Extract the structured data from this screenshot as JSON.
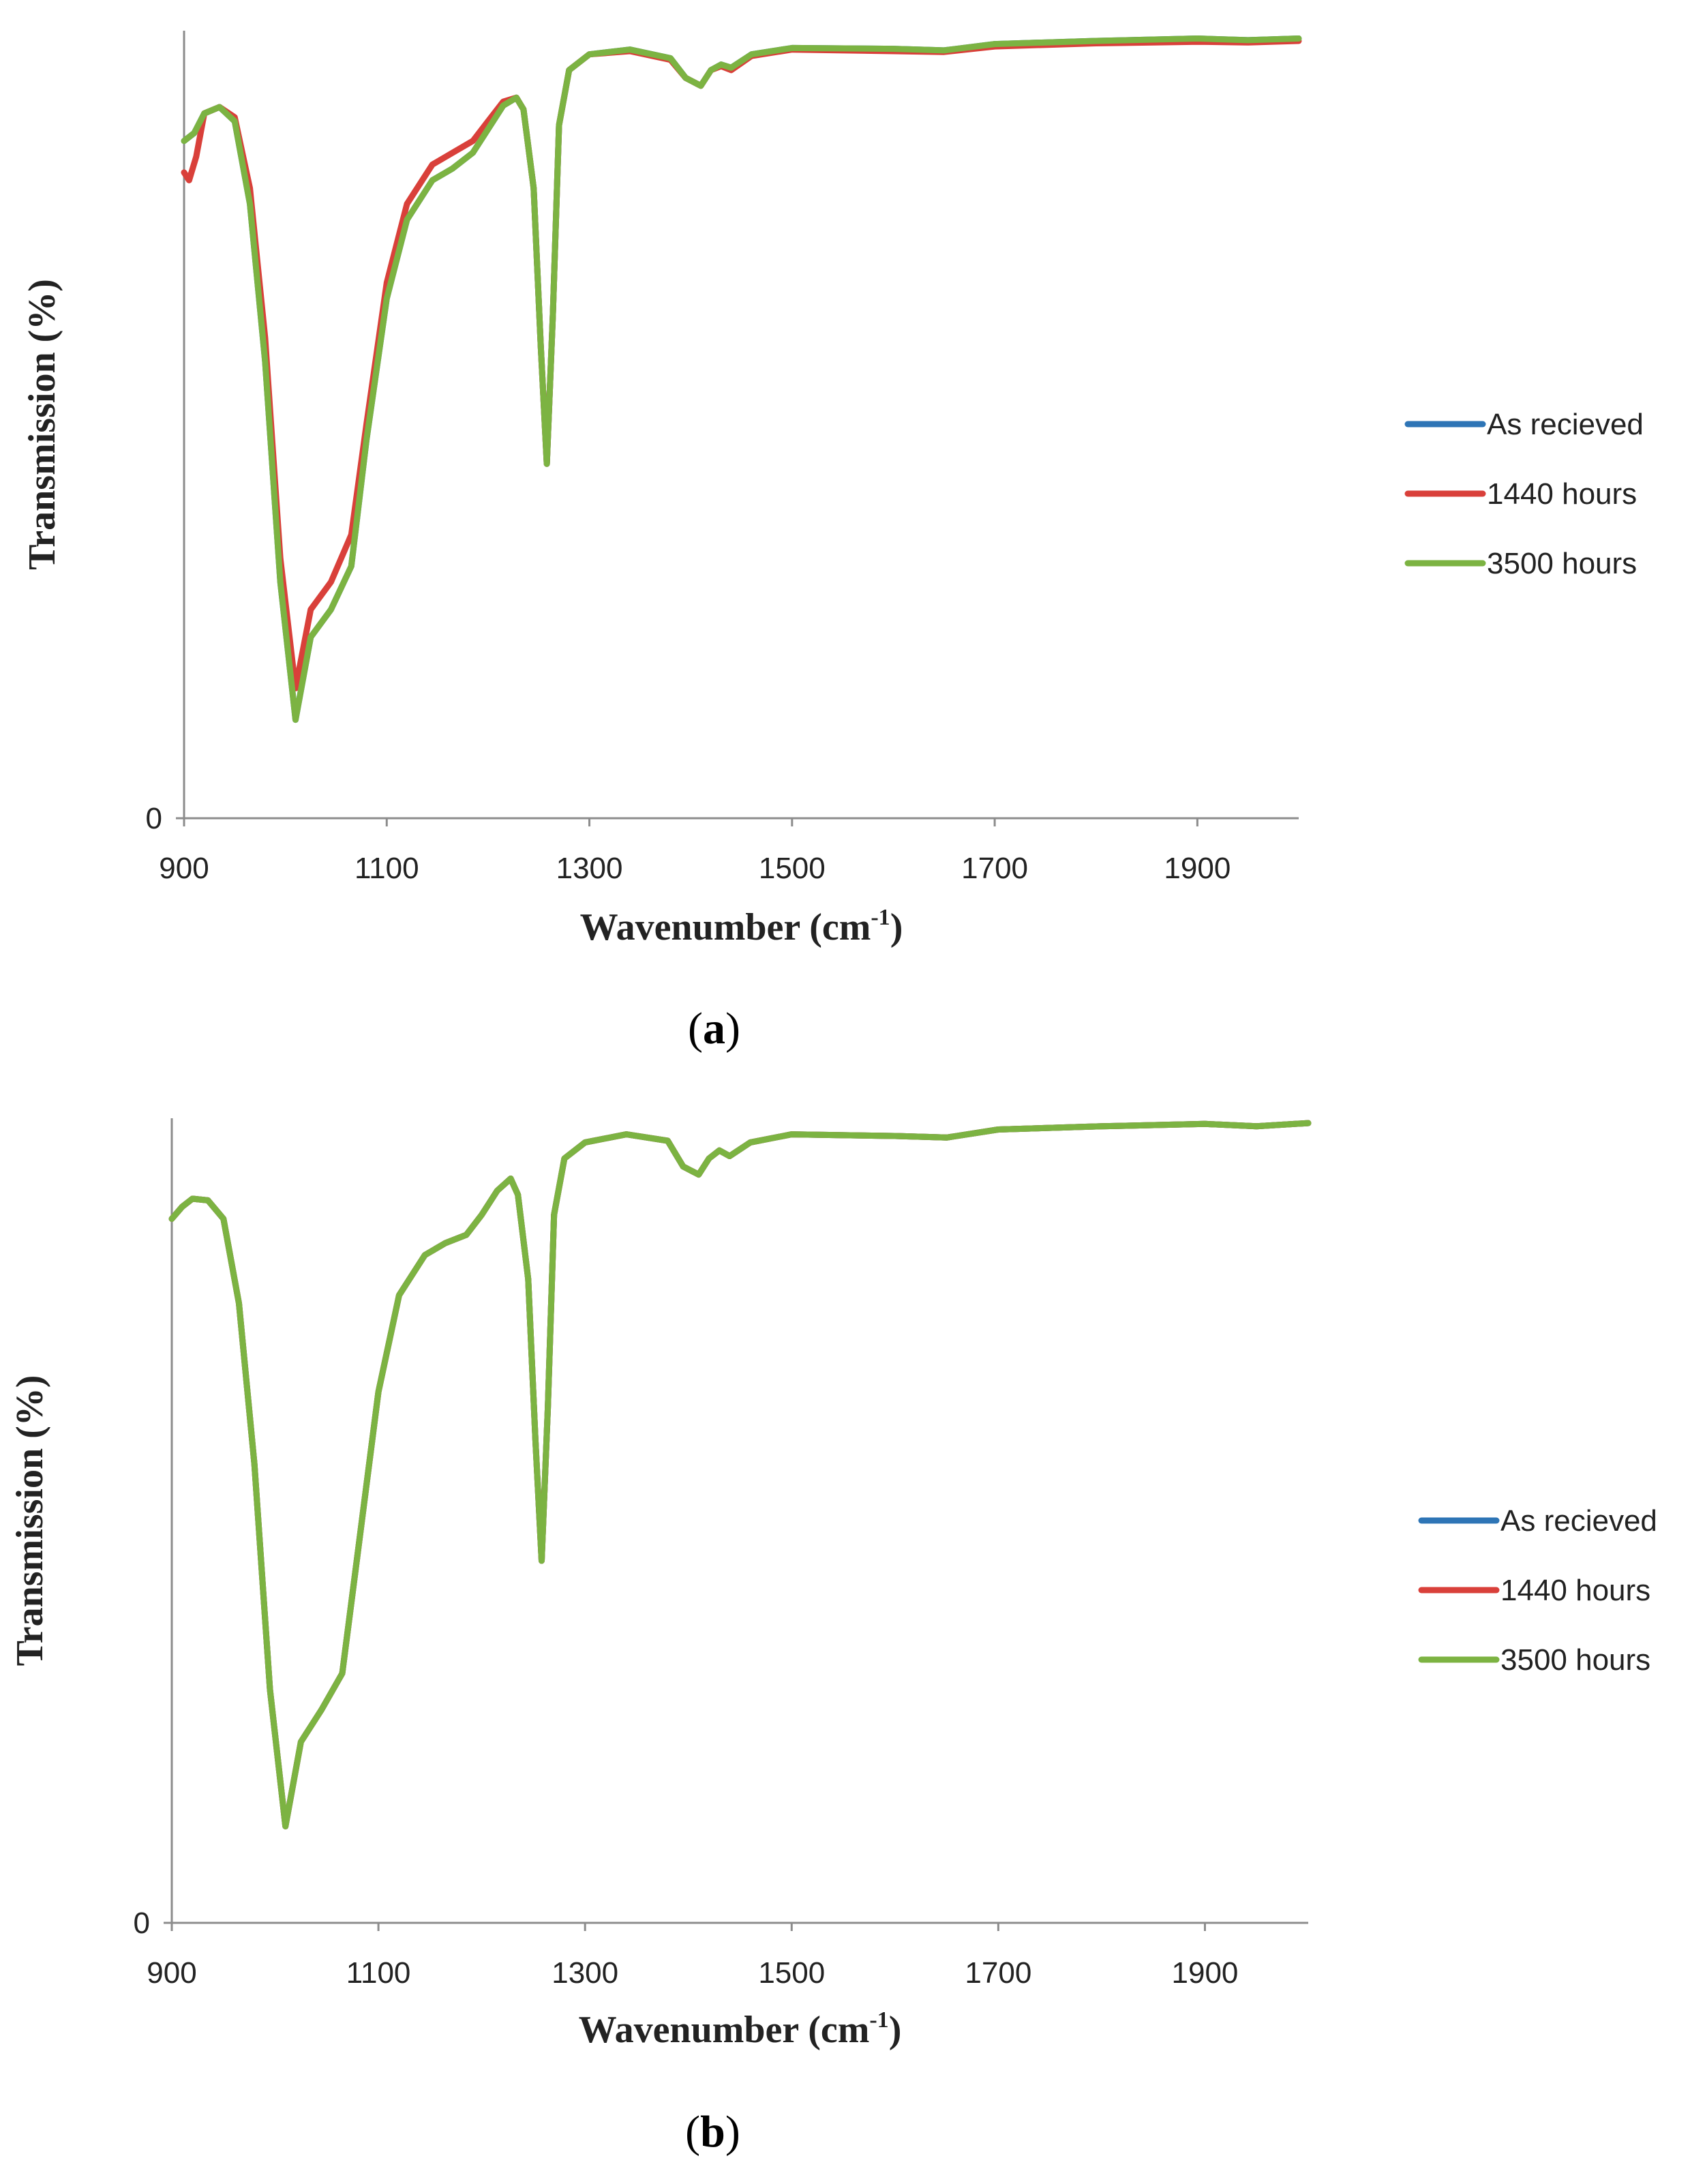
{
  "chart_data": [
    {
      "type": "line",
      "panel_label": "a",
      "title": "",
      "xlabel": "Wavenumber (cm",
      "xlabel_sup": "-1",
      "xlabel_suffix": ")",
      "ylabel": "Transmission (%)",
      "xlim": [
        900,
        2000
      ],
      "ylim": [
        0,
        100
      ],
      "x_ticks": [
        900,
        1100,
        1300,
        1500,
        1700,
        1900
      ],
      "y_ticks": [
        0
      ],
      "legend_position": "right",
      "series": [
        {
          "name": "As recieved",
          "color": "#2e75b6",
          "x": [
            900,
            910,
            920,
            935,
            950,
            965,
            980,
            995,
            1010,
            1025,
            1045,
            1065,
            1080,
            1100,
            1120,
            1145,
            1165,
            1185,
            1200,
            1215,
            1228,
            1235,
            1245,
            1252,
            1258,
            1264,
            1270,
            1280,
            1300,
            1340,
            1380,
            1395,
            1410,
            1420,
            1430,
            1440,
            1460,
            1500,
            1600,
            1650,
            1700,
            1800,
            1900,
            1950,
            2000
          ],
          "y": [
            86.0,
            87.0,
            89.5,
            90.3,
            88.5,
            78.0,
            58.0,
            30.0,
            12.5,
            23.0,
            26.5,
            32.0,
            48.0,
            66.0,
            76.0,
            81.0,
            82.5,
            84.5,
            87.5,
            90.5,
            91.5,
            90.0,
            80.0,
            60.0,
            45.0,
            64.0,
            88.0,
            95.0,
            97.0,
            97.6,
            96.5,
            94.0,
            93.0,
            95.0,
            95.7,
            95.3,
            97.0,
            97.8,
            97.7,
            97.5,
            98.3,
            98.7,
            99.0,
            98.8,
            99.0
          ]
        },
        {
          "name": "1440 hours",
          "color": "#d9403a",
          "x": [
            900,
            905,
            912,
            920,
            935,
            950,
            965,
            980,
            995,
            1010,
            1025,
            1045,
            1065,
            1080,
            1100,
            1120,
            1145,
            1165,
            1185,
            1200,
            1215,
            1228,
            1235,
            1245,
            1252,
            1258,
            1264,
            1270,
            1280,
            1300,
            1340,
            1380,
            1395,
            1410,
            1420,
            1430,
            1440,
            1460,
            1500,
            1600,
            1650,
            1700,
            1800,
            1900,
            1950,
            2000
          ],
          "y": [
            82.0,
            81.0,
            84.0,
            89.5,
            90.3,
            89.0,
            80.0,
            61.0,
            33.0,
            16.5,
            26.5,
            30.0,
            36.0,
            50.0,
            68.0,
            78.0,
            83.0,
            84.5,
            86.0,
            88.5,
            91.0,
            91.5,
            90.0,
            80.0,
            60.0,
            45.0,
            64.0,
            88.0,
            95.0,
            97.0,
            97.4,
            96.3,
            94.0,
            93.0,
            95.0,
            95.5,
            95.0,
            96.8,
            97.6,
            97.4,
            97.3,
            98.0,
            98.4,
            98.6,
            98.5,
            98.7
          ]
        },
        {
          "name": "3500 hours",
          "color": "#7cb342",
          "x": [
            900,
            910,
            920,
            935,
            950,
            965,
            980,
            995,
            1010,
            1025,
            1045,
            1065,
            1080,
            1100,
            1120,
            1145,
            1165,
            1185,
            1200,
            1215,
            1228,
            1235,
            1245,
            1252,
            1258,
            1264,
            1270,
            1280,
            1300,
            1340,
            1380,
            1395,
            1410,
            1420,
            1430,
            1440,
            1460,
            1500,
            1600,
            1650,
            1700,
            1800,
            1900,
            1950,
            2000
          ],
          "y": [
            86.0,
            87.0,
            89.5,
            90.3,
            88.5,
            78.0,
            58.0,
            30.0,
            12.5,
            23.0,
            26.5,
            32.0,
            48.0,
            66.0,
            76.0,
            81.0,
            82.5,
            84.5,
            87.5,
            90.5,
            91.5,
            90.0,
            80.0,
            60.0,
            45.0,
            64.0,
            88.0,
            95.0,
            97.0,
            97.6,
            96.5,
            94.0,
            93.0,
            95.0,
            95.7,
            95.3,
            97.0,
            97.8,
            97.7,
            97.5,
            98.3,
            98.7,
            99.0,
            98.8,
            99.0
          ]
        }
      ]
    },
    {
      "type": "line",
      "panel_label": "b",
      "title": "",
      "xlabel": "Wavenumber (cm",
      "xlabel_sup": "-1",
      "xlabel_suffix": ")",
      "ylabel": "Transmission (%)",
      "xlim": [
        900,
        2000
      ],
      "ylim": [
        0,
        100
      ],
      "x_ticks": [
        900,
        1100,
        1300,
        1500,
        1700,
        1900
      ],
      "y_ticks": [
        0
      ],
      "legend_position": "right",
      "series": [
        {
          "name": "As recieved",
          "color": "#2e75b6",
          "x": [
            900,
            910,
            920,
            935,
            950,
            965,
            980,
            995,
            1010,
            1025,
            1045,
            1065,
            1080,
            1100,
            1120,
            1145,
            1165,
            1185,
            1200,
            1215,
            1228,
            1235,
            1245,
            1252,
            1258,
            1264,
            1270,
            1280,
            1300,
            1340,
            1380,
            1395,
            1410,
            1420,
            1430,
            1440,
            1460,
            1500,
            1600,
            1650,
            1700,
            1800,
            1900,
            1950,
            2000
          ],
          "y": [
            87.5,
            89.0,
            90.0,
            89.8,
            87.5,
            77.0,
            57.0,
            29.0,
            12.0,
            22.5,
            26.5,
            31.0,
            46.0,
            66.0,
            78.0,
            83.0,
            84.5,
            85.5,
            88.0,
            91.0,
            92.5,
            90.5,
            80.0,
            60.0,
            45.0,
            64.0,
            88.0,
            95.0,
            97.0,
            98.0,
            97.2,
            94.0,
            93.0,
            95.0,
            96.0,
            95.3,
            97.0,
            98.0,
            97.8,
            97.6,
            98.6,
            99.0,
            99.3,
            99.0,
            99.4
          ]
        },
        {
          "name": "1440 hours",
          "color": "#d9403a",
          "x": [
            900,
            910,
            920,
            935,
            950,
            965,
            980,
            995,
            1010,
            1025,
            1045,
            1065,
            1080,
            1100,
            1120,
            1145,
            1165,
            1185,
            1200,
            1215,
            1228,
            1235,
            1245,
            1252,
            1258,
            1264,
            1270,
            1280,
            1300,
            1340,
            1380,
            1395,
            1410,
            1420,
            1430,
            1440,
            1460,
            1500,
            1600,
            1650,
            1700,
            1800,
            1900,
            1950,
            2000
          ],
          "y": [
            87.5,
            89.0,
            90.0,
            89.8,
            87.5,
            77.0,
            57.0,
            29.0,
            12.0,
            22.5,
            26.5,
            31.0,
            46.0,
            66.0,
            78.0,
            83.0,
            84.5,
            85.5,
            88.0,
            91.0,
            92.5,
            90.5,
            80.0,
            60.0,
            45.0,
            64.0,
            88.0,
            95.0,
            97.0,
            98.0,
            97.2,
            94.0,
            93.0,
            95.0,
            96.0,
            95.3,
            97.0,
            98.0,
            97.8,
            97.6,
            98.6,
            99.0,
            99.3,
            99.0,
            99.4
          ]
        },
        {
          "name": "3500 hours",
          "color": "#7cb342",
          "x": [
            900,
            910,
            920,
            935,
            950,
            965,
            980,
            995,
            1010,
            1025,
            1045,
            1065,
            1080,
            1100,
            1120,
            1145,
            1165,
            1185,
            1200,
            1215,
            1228,
            1235,
            1245,
            1252,
            1258,
            1264,
            1270,
            1280,
            1300,
            1340,
            1380,
            1395,
            1410,
            1420,
            1430,
            1440,
            1460,
            1500,
            1600,
            1650,
            1700,
            1800,
            1900,
            1950,
            2000
          ],
          "y": [
            87.5,
            89.0,
            90.0,
            89.8,
            87.5,
            77.0,
            57.0,
            29.0,
            12.0,
            22.5,
            26.5,
            31.0,
            46.0,
            66.0,
            78.0,
            83.0,
            84.5,
            85.5,
            88.0,
            91.0,
            92.5,
            90.5,
            80.0,
            60.0,
            45.0,
            64.0,
            88.0,
            95.0,
            97.0,
            98.0,
            97.2,
            94.0,
            93.0,
            95.0,
            96.0,
            95.3,
            97.0,
            98.0,
            97.8,
            97.6,
            98.6,
            99.0,
            99.3,
            99.0,
            99.4
          ]
        }
      ]
    }
  ]
}
